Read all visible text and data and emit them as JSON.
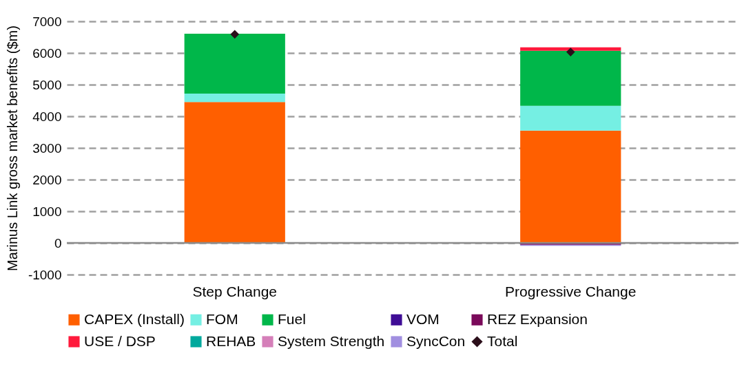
{
  "chart_data": {
    "type": "bar",
    "stacked": true,
    "ylabel": "Marinus Link gross market benefits ($m)",
    "categories": [
      "Step Change",
      "Progressive Change"
    ],
    "series": [
      {
        "name": "CAPEX (Install)",
        "color": "#ff5f00",
        "values": [
          4450,
          3550
        ]
      },
      {
        "name": "FOM",
        "color": "#75efe3",
        "values": [
          270,
          780
        ]
      },
      {
        "name": "Fuel",
        "color": "#00b74a",
        "values": [
          1890,
          1740
        ]
      },
      {
        "name": "VOM",
        "color": "#3f0d96",
        "values": [
          0,
          0
        ]
      },
      {
        "name": "REZ Expansion",
        "color": "#7a0a5a",
        "values": [
          0,
          -60
        ]
      },
      {
        "name": "USE / DSP",
        "color": "#ff1a3c",
        "values": [
          0,
          110
        ]
      },
      {
        "name": "REHAB",
        "color": "#00a99d",
        "values": [
          0,
          0
        ]
      },
      {
        "name": "System Strength",
        "color": "#d57fb9",
        "values": [
          0,
          0
        ]
      },
      {
        "name": "SyncCon",
        "color": "#a18fe0",
        "values": [
          -20,
          -30
        ]
      },
      {
        "name": "Total",
        "type": "scatter",
        "marker": "diamond",
        "color": "#2b0e1a",
        "values": [
          6590,
          6030
        ]
      }
    ],
    "ylim": [
      -1000,
      7000
    ],
    "yticks": [
      -1000,
      0,
      1000,
      2000,
      3000,
      4000,
      5000,
      6000,
      7000
    ],
    "grid": "y",
    "legend": "bottom",
    "ref_lines": [
      {
        "axis": "y",
        "value": 0
      }
    ]
  }
}
